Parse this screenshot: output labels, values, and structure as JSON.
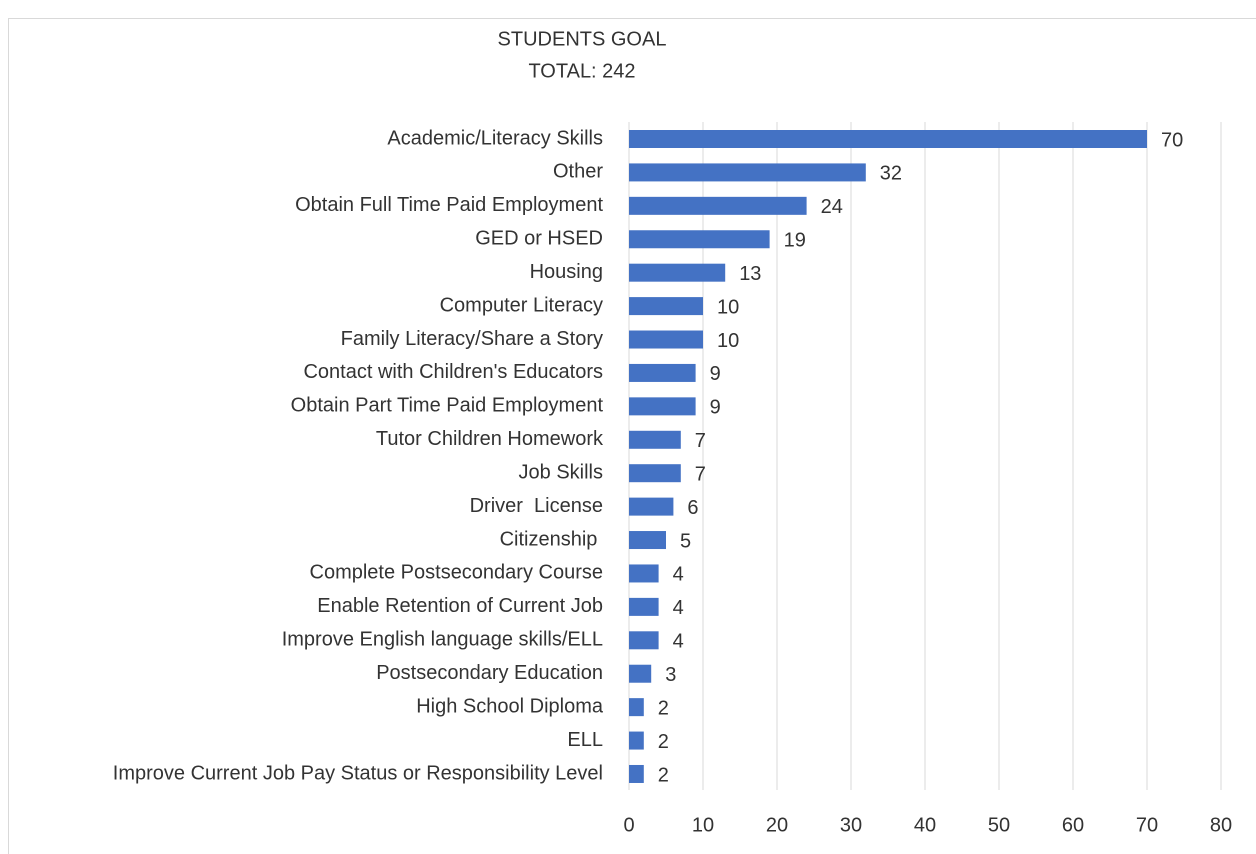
{
  "chart_data": {
    "type": "bar",
    "orientation": "horizontal",
    "title": "STUDENTS GOAL",
    "subtitle": "TOTAL: 242",
    "categories": [
      "Academic/Literacy Skills",
      "Other",
      "Obtain Full Time Paid Employment",
      "GED or HSED",
      "Housing",
      "Computer Literacy",
      "Family Literacy/Share a Story",
      "Contact with Children's Educators",
      "Obtain Part Time Paid Employment",
      "Tutor Children Homework",
      "Job Skills",
      "Driver  License",
      "Citizenship ",
      "Complete Postsecondary Course",
      "Enable Retention of Current Job",
      "Improve English language skills/ELL",
      "Postsecondary Education",
      "High School Diploma",
      "ELL",
      "Improve Current Job Pay Status or Responsibility Level"
    ],
    "values": [
      70,
      32,
      24,
      19,
      13,
      10,
      10,
      9,
      9,
      7,
      7,
      6,
      5,
      4,
      4,
      4,
      3,
      2,
      2,
      2
    ],
    "color": "#4472c4",
    "xlim": [
      0,
      80
    ],
    "xticks": [
      0,
      10,
      20,
      30,
      40,
      50,
      60,
      70,
      80
    ],
    "grid": true
  }
}
